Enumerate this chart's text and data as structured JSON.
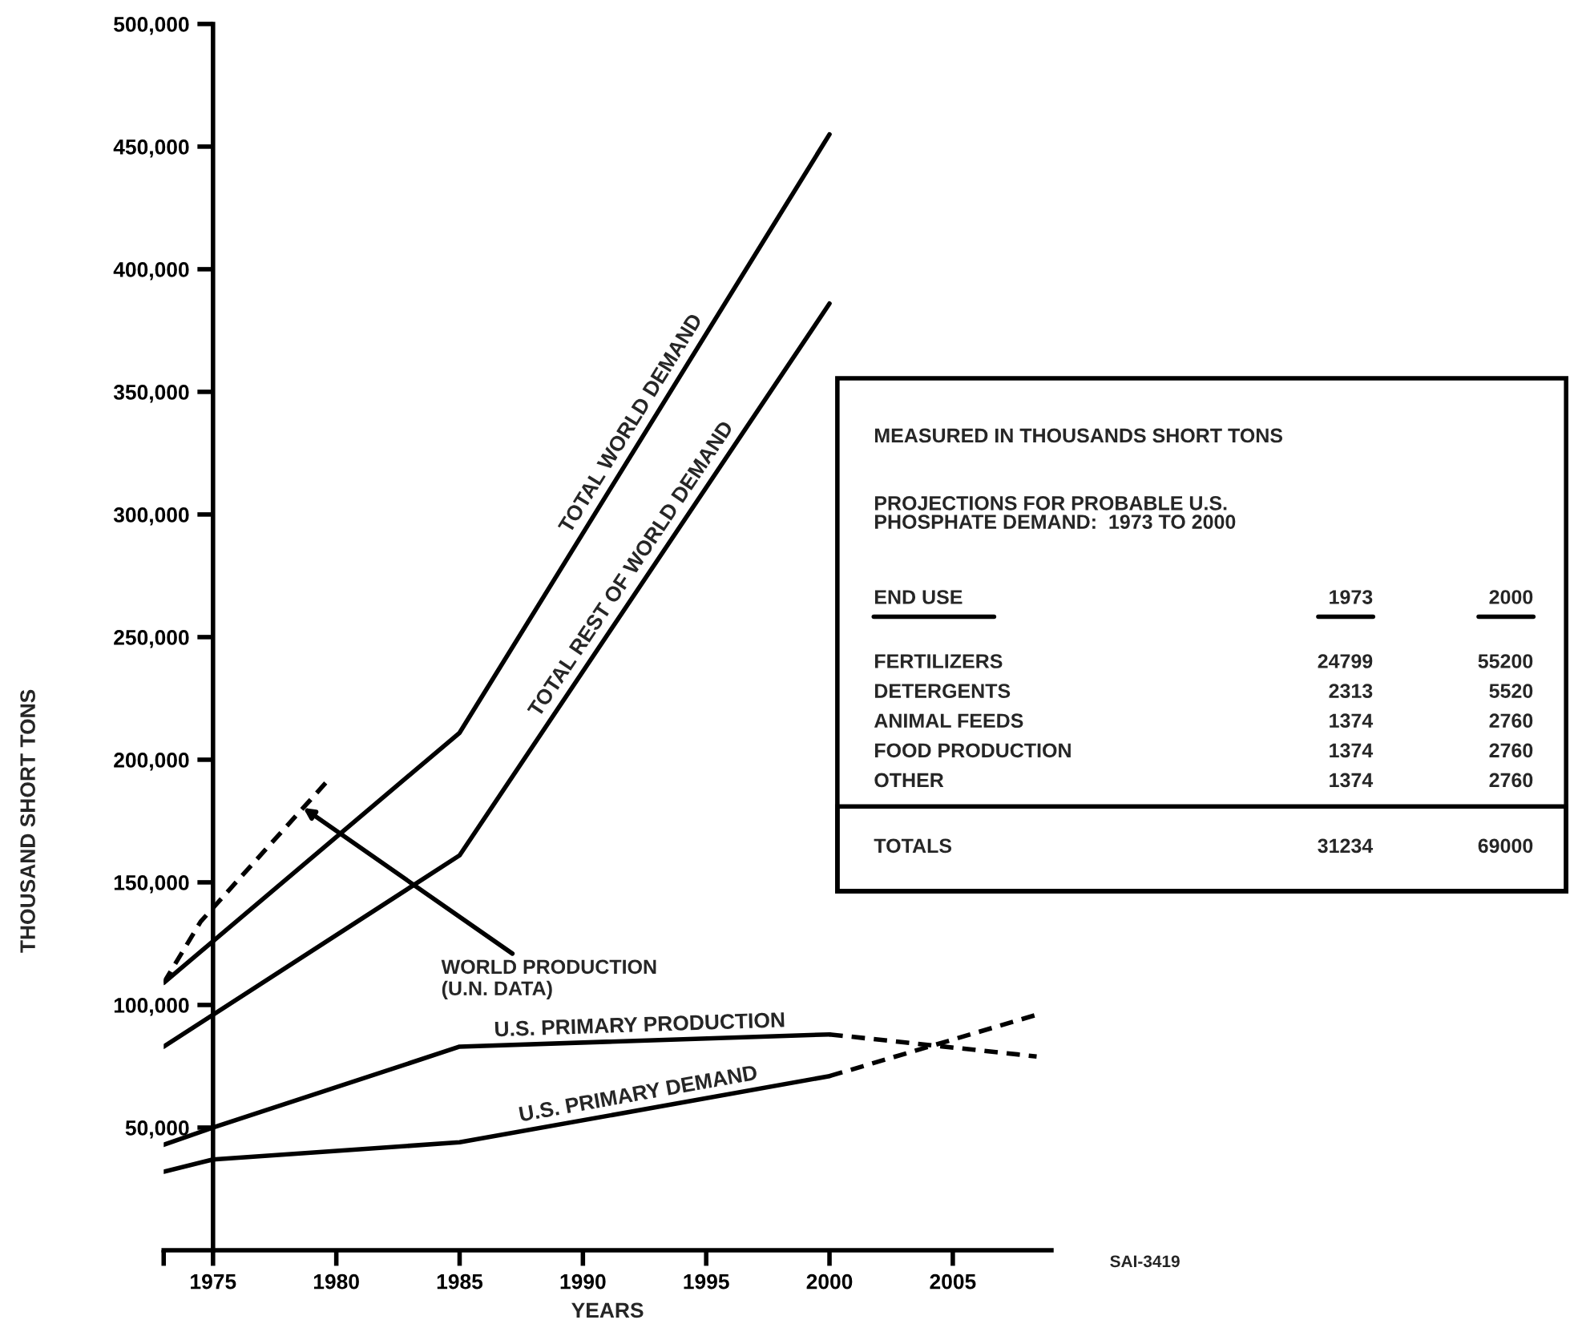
{
  "chart_data": [
    {
      "type": "line",
      "xlabel": "YEARS",
      "ylabel": "THOUSAND SHORT TONS",
      "xlim": [
        1973,
        2009
      ],
      "ylim": [
        0,
        500000
      ],
      "xticks": [
        {
          "value": 1973,
          "label": null
        },
        1975,
        1980,
        1985,
        1990,
        1995,
        2000,
        2005
      ],
      "yticks": [
        {
          "value": 50000,
          "label": "50,000"
        },
        {
          "value": 100000,
          "label": "100,000"
        },
        {
          "value": 150000,
          "label": "150,000"
        },
        {
          "value": 200000,
          "label": "200,000"
        },
        {
          "value": 250000,
          "label": "250,000"
        },
        {
          "value": 300000,
          "label": "300,000"
        },
        {
          "value": 350000,
          "label": "350,000"
        },
        {
          "value": 400000,
          "label": "400,000"
        },
        {
          "value": 450000,
          "label": "450,000"
        },
        {
          "value": 500000,
          "label": "500,000"
        }
      ],
      "series": [
        {
          "name": "TOTAL WORLD DEMAND",
          "color": "#000000",
          "line_style": "solid",
          "x": [
            1973,
            1985,
            2000
          ],
          "values": [
            109000,
            211000,
            455000
          ]
        },
        {
          "name": "TOTAL REST OF WORLD DEMAND",
          "color": "#000000",
          "line_style": "solid",
          "x": [
            1973,
            1985,
            2000
          ],
          "values": [
            83000,
            161000,
            386000
          ]
        },
        {
          "name": "WORLD PRODUCTION\n(U.N. DATA)",
          "color": "#000000",
          "line_style": "dashed",
          "x": [
            1973,
            1974.5,
            1979.7
          ],
          "values": [
            109000,
            134000,
            192000
          ]
        },
        {
          "name": "U.S. PRIMARY PRODUCTION",
          "color": "#000000",
          "line_style": "solid",
          "x": [
            1973,
            1975,
            1985,
            2000
          ],
          "values": [
            43000,
            50000,
            83000,
            88000
          ]
        },
        {
          "color": "#000000",
          "line_style": "dashed",
          "x": [
            2000,
            2008.4
          ],
          "values": [
            88000,
            79000
          ]
        },
        {
          "name": "U.S. PRIMARY DEMAND",
          "color": "#000000",
          "line_style": "solid",
          "x": [
            1973,
            1975,
            1985,
            2000
          ],
          "values": [
            32000,
            37000,
            44000,
            71000
          ]
        },
        {
          "color": "#000000",
          "line_style": "dashed",
          "x": [
            2000,
            2008.4
          ],
          "values": [
            71000,
            96000
          ]
        }
      ],
      "annotations": [
        "SAI-3419"
      ],
      "legend": false,
      "grid": false,
      "marker": "none"
    },
    {
      "type": "other",
      "title": "MEASURED IN THOUSANDS SHORT TONS",
      "subtitle": "PROJECTIONS FOR PROBABLE U.S.\nPHOSPHATE DEMAND:  1973 TO 2000",
      "xlabel": "END USE",
      "categories": [
        "FERTILIZERS",
        "DETERGENTS",
        "ANIMAL FEEDS",
        "FOOD PRODUCTION",
        "OTHER"
      ],
      "series": [
        {
          "name": "1973",
          "values": [
            24799,
            2313,
            1374,
            1374,
            1374
          ]
        },
        {
          "name": "2000",
          "values": [
            55200,
            5520,
            2760,
            2760,
            2760
          ]
        }
      ],
      "annotations": [
        "TOTALS"
      ],
      "totals": [
        "31234",
        "69000"
      ],
      "data_labels": true
    }
  ]
}
